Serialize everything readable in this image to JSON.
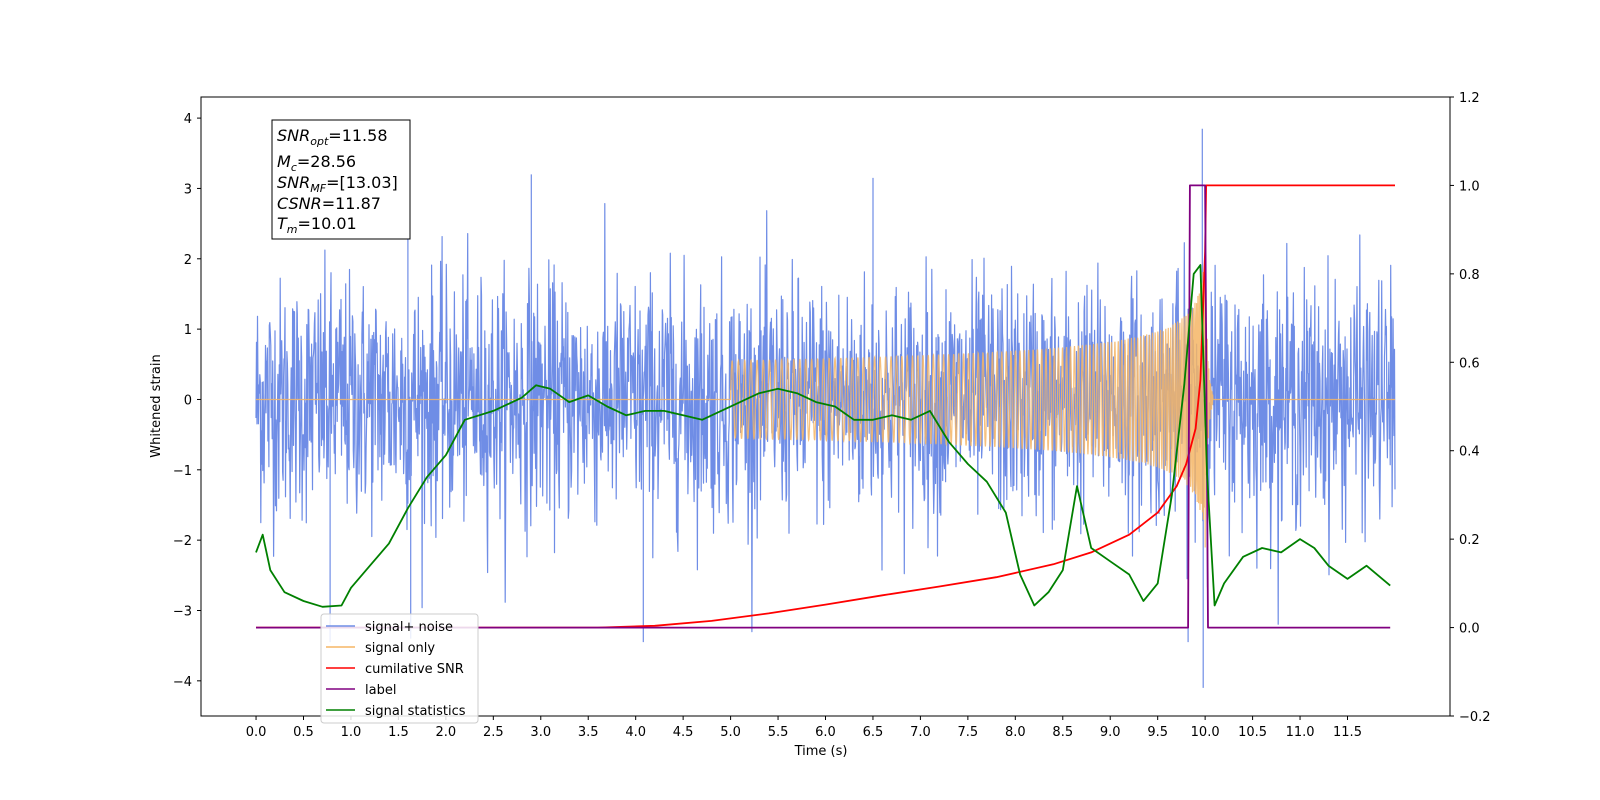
{
  "chart_data": {
    "type": "line",
    "xlabel": "Time (s)",
    "ylabel": "Whitened strain",
    "xlim": [
      -0.58,
      12.58
    ],
    "ylim": [
      -4.5,
      4.3
    ],
    "y2lim": [
      -0.2,
      1.2
    ],
    "x_ticks": [
      "0.0",
      "0.5",
      "1.0",
      "1.5",
      "2.0",
      "2.5",
      "3.0",
      "3.5",
      "4.0",
      "4.5",
      "5.0",
      "5.5",
      "6.0",
      "6.5",
      "7.0",
      "7.5",
      "8.0",
      "8.5",
      "9.0",
      "9.5",
      "10.0",
      "10.5",
      "11.0",
      "11.5"
    ],
    "y_ticks": [
      "4",
      "3",
      "2",
      "1",
      "0",
      "−1",
      "−2",
      "−3",
      "−4"
    ],
    "y2_ticks": [
      "1.2",
      "1.0",
      "0.8",
      "0.6",
      "0.4",
      "0.2",
      "0.0",
      "−0.2"
    ],
    "grid": false,
    "legend_position": "lower-left",
    "info_box": {
      "snr_opt": {
        "sym": "SNR",
        "sub": "opt",
        "val": "=11.58"
      },
      "mc": {
        "sym": "M",
        "sub": "c",
        "val": "=28.56"
      },
      "snr_mf": {
        "sym": "SNR",
        "sub": "MF",
        "val": "=[13.03]"
      },
      "csnr": {
        "sym": "CSNR",
        "sub": "",
        "val": "=11.87"
      },
      "tm": {
        "sym": "T",
        "sub": "m",
        "val": "=10.01"
      }
    },
    "series": [
      {
        "name": "signal+ noise",
        "axis": "left",
        "color": "#6f8de6",
        "style": "noise",
        "noise_sigma": 0.85,
        "noise_range": [
          0.0,
          12.0
        ],
        "peaks": [
          {
            "x": 0.78,
            "y": -3.45
          },
          {
            "x": 1.6,
            "y": 3.0
          },
          {
            "x": 1.63,
            "y": -3.4
          },
          {
            "x": 2.9,
            "y": 3.2
          },
          {
            "x": 4.08,
            "y": -3.45
          },
          {
            "x": 6.5,
            "y": 3.15
          },
          {
            "x": 9.82,
            "y": -3.45
          },
          {
            "x": 9.97,
            "y": 3.85
          },
          {
            "x": 9.98,
            "y": -4.1
          }
        ]
      },
      {
        "name": "signal only",
        "axis": "left",
        "color": "#f5b565",
        "style": "chirp",
        "chirp_start": 5.0,
        "chirp_merge": 10.0,
        "chirp_end": 10.08,
        "chirp_peak_amp": 2.2
      },
      {
        "name": "cumilative SNR",
        "axis": "right",
        "color": "#ff0000",
        "x": [
          0.0,
          3.6,
          4.2,
          4.8,
          5.4,
          6.0,
          6.6,
          7.2,
          7.8,
          8.4,
          8.8,
          9.2,
          9.5,
          9.7,
          9.8,
          9.9,
          9.95,
          10.0,
          10.01,
          12.0
        ],
        "y": [
          0.0,
          0.0,
          0.004,
          0.015,
          0.032,
          0.052,
          0.073,
          0.093,
          0.114,
          0.143,
          0.17,
          0.21,
          0.26,
          0.32,
          0.37,
          0.45,
          0.56,
          0.85,
          1.0,
          1.0
        ]
      },
      {
        "name": "label",
        "axis": "right",
        "color": "#800080",
        "x": [
          0.0,
          9.82,
          9.84,
          10.0,
          10.03,
          11.95
        ],
        "y": [
          0.0,
          0.0,
          1.0,
          1.0,
          0.0,
          0.0
        ]
      },
      {
        "name": "signal statistics",
        "axis": "right",
        "color": "#008000",
        "x": [
          0.0,
          0.07,
          0.15,
          0.3,
          0.5,
          0.7,
          0.9,
          1.0,
          1.2,
          1.4,
          1.6,
          1.8,
          2.0,
          2.2,
          2.5,
          2.8,
          2.95,
          3.1,
          3.3,
          3.5,
          3.7,
          3.9,
          4.1,
          4.3,
          4.5,
          4.7,
          4.9,
          5.1,
          5.3,
          5.5,
          5.7,
          5.9,
          6.1,
          6.3,
          6.5,
          6.7,
          6.9,
          7.1,
          7.3,
          7.5,
          7.7,
          7.9,
          8.05,
          8.2,
          8.35,
          8.5,
          8.65,
          8.8,
          9.0,
          9.2,
          9.35,
          9.5,
          9.65,
          9.78,
          9.88,
          9.95,
          10.02,
          10.1,
          10.2,
          10.4,
          10.6,
          10.8,
          11.0,
          11.15,
          11.3,
          11.5,
          11.7,
          11.95
        ],
        "y": [
          0.17,
          0.21,
          0.13,
          0.08,
          0.06,
          0.047,
          0.05,
          0.09,
          0.14,
          0.19,
          0.27,
          0.34,
          0.39,
          0.47,
          0.49,
          0.52,
          0.548,
          0.54,
          0.51,
          0.525,
          0.5,
          0.48,
          0.49,
          0.49,
          0.48,
          0.47,
          0.49,
          0.51,
          0.53,
          0.54,
          0.53,
          0.51,
          0.5,
          0.47,
          0.47,
          0.48,
          0.47,
          0.49,
          0.42,
          0.37,
          0.33,
          0.26,
          0.12,
          0.05,
          0.08,
          0.13,
          0.32,
          0.18,
          0.15,
          0.12,
          0.06,
          0.1,
          0.3,
          0.55,
          0.8,
          0.82,
          0.35,
          0.05,
          0.1,
          0.16,
          0.18,
          0.17,
          0.2,
          0.18,
          0.14,
          0.11,
          0.14,
          0.095
        ]
      }
    ]
  }
}
